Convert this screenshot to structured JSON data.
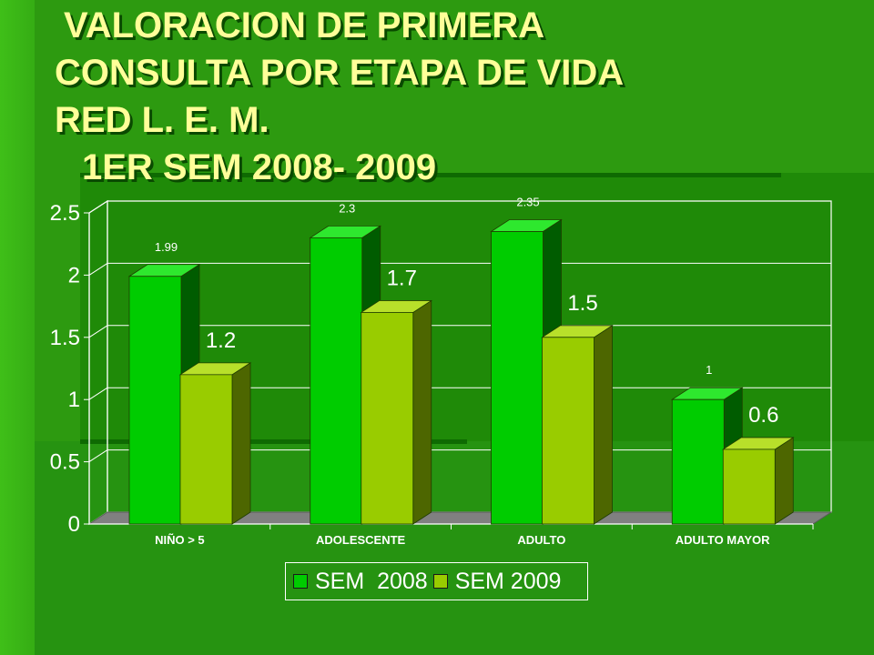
{
  "title_lines": [
    "VALORACION DE PRIMERA",
    "CONSULTA POR ETAPA DE VIDA",
    "RED L. E. M.",
    "1ER SEM 2008- 2009"
  ],
  "chart_data": {
    "type": "bar",
    "categories": [
      "NIÑO > 5",
      "ADOLESCENTE",
      "ADULTO",
      "ADULTO MAYOR"
    ],
    "series": [
      {
        "name": "SEM  2008",
        "values": [
          1.99,
          2.3,
          2.35,
          1
        ],
        "labels": [
          "1.99",
          "2.3",
          "2.35",
          "1"
        ],
        "color": "#00cc00",
        "side": "#005c00",
        "top": "#2ee82e"
      },
      {
        "name": "SEM 2009",
        "values": [
          1.2,
          1.7,
          1.5,
          0.6
        ],
        "labels": [
          "1.2",
          "1.7",
          "1.5",
          "0.6"
        ],
        "color": "#99cc00",
        "side": "#4d6600",
        "top": "#b8e02a"
      }
    ],
    "ylim": [
      0,
      2.5
    ],
    "yticks": [
      0,
      0.5,
      1,
      1.5,
      2,
      2.5
    ],
    "ytick_labels": [
      "0",
      "0.5",
      "1",
      "1.5",
      "2",
      "2.5"
    ],
    "grid": true,
    "legend_position": "bottom",
    "style": "3d-clustered-column"
  }
}
